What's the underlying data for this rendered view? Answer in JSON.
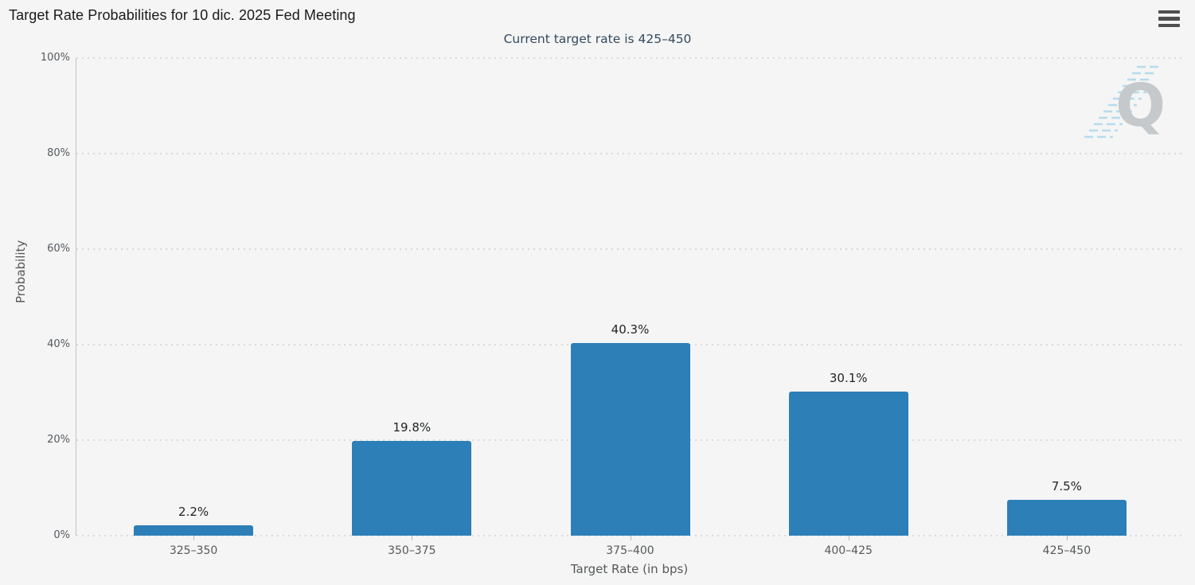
{
  "header": {
    "title": "Target Rate Probabilities for 10 dic. 2025 Fed Meeting"
  },
  "chart_data": {
    "type": "bar",
    "subtitle": "Current target rate is 425–450",
    "categories": [
      "325–350",
      "350–375",
      "375–400",
      "400–425",
      "425–450"
    ],
    "values": [
      2.2,
      19.8,
      40.3,
      30.1,
      7.5
    ],
    "value_labels": [
      "2.2%",
      "19.8%",
      "40.3%",
      "30.1%",
      "7.5%"
    ],
    "xlabel": "Target Rate (in bps)",
    "ylabel": "Probability",
    "ylim": [
      0,
      100
    ],
    "yticks": [
      "0%",
      "20%",
      "40%",
      "60%",
      "80%",
      "100%"
    ],
    "grid": "horizontal dotted",
    "legend": "none",
    "bar_color": "#2d7fb8",
    "watermark_letter": "Q"
  },
  "colors": {
    "background": "#f5f5f5",
    "bar": "#2d7fb8",
    "subtitle_text": "#34495e",
    "axis_text": "#55585a",
    "gridline": "#d9d9d9"
  }
}
